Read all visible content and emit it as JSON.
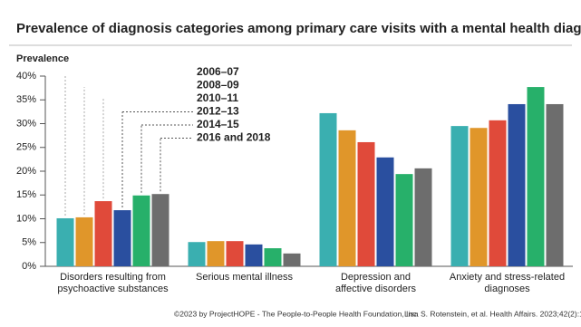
{
  "chart_data": {
    "type": "bar",
    "title": "Prevalence of diagnosis categories among primary care visits with a mental health diagnosis",
    "ylabel": "Prevalence",
    "categories": [
      [
        "Disorders resulting from",
        "psychoactive substances"
      ],
      [
        "Serious mental illness"
      ],
      [
        "Depression and",
        "affective disorders"
      ],
      [
        "Anxiety and stress-related",
        "diagnoses"
      ]
    ],
    "series": [
      {
        "name": "2006–07",
        "color": "#3aafb0",
        "values": [
          10.1,
          5.1,
          32.2,
          29.5
        ]
      },
      {
        "name": "2008–09",
        "color": "#e0962a",
        "values": [
          10.3,
          5.3,
          28.6,
          29.1
        ]
      },
      {
        "name": "2010–11",
        "color": "#e04a3a",
        "values": [
          13.7,
          5.3,
          26.1,
          30.7
        ]
      },
      {
        "name": "2012–13",
        "color": "#2a4f9f",
        "values": [
          11.8,
          4.6,
          22.9,
          34.1
        ]
      },
      {
        "name": "2014–15",
        "color": "#27b06a",
        "values": [
          14.9,
          3.8,
          19.4,
          37.7
        ]
      },
      {
        "name": "2016 and 2018",
        "color": "#6d6d6d",
        "values": [
          15.2,
          2.7,
          20.6,
          34.1
        ]
      }
    ],
    "ylim": [
      0,
      40
    ],
    "yticks": [
      {
        "value": 0,
        "label": "0%"
      },
      {
        "value": 5,
        "label": "5%"
      },
      {
        "value": 10,
        "label": "10%"
      },
      {
        "value": 15,
        "label": "15%"
      },
      {
        "value": 20,
        "label": "20%"
      },
      {
        "value": 25,
        "label": "25%"
      },
      {
        "value": 30,
        "label": "30%"
      },
      {
        "value": 35,
        "label": "35%"
      },
      {
        "value": 40,
        "label": "40%"
      }
    ],
    "footnotes": [
      "©2023 by ProjectHOPE - The People-to-People Health Foundation, Inc.",
      "Lisa S. Rotenstein, et al. Health Affairs. 2023;42(2):168"
    ]
  }
}
